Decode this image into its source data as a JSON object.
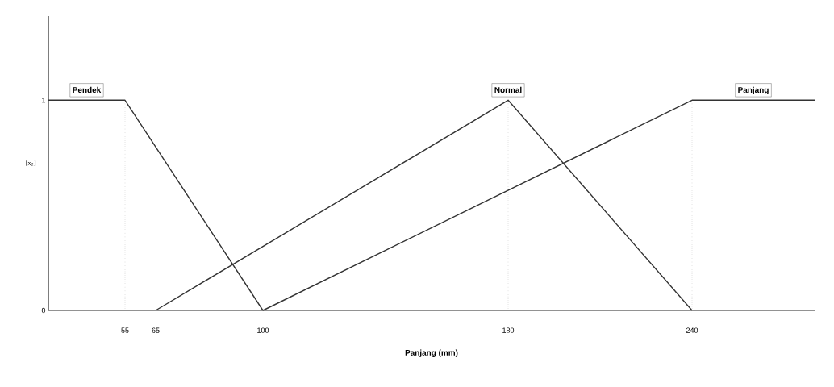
{
  "chart_data": {
    "type": "line",
    "xlabel": "Panjang (mm)",
    "ylabel": "[x$_{2}$]",
    "xlim": [
      30,
      280
    ],
    "ylim": [
      0,
      1.4
    ],
    "xticks": [
      55,
      65,
      100,
      180,
      240
    ],
    "yticks": [
      0,
      1
    ],
    "series": [
      {
        "name": "Pendek",
        "color": "#333333",
        "x": [
          30,
          55,
          100
        ],
        "values": [
          1,
          1,
          0
        ]
      },
      {
        "name": "Normal",
        "color": "#333333",
        "x": [
          65,
          180,
          240
        ],
        "values": [
          0,
          1,
          0
        ]
      },
      {
        "name": "Panjang",
        "color": "#333333",
        "x": [
          100,
          240,
          280
        ],
        "values": [
          0,
          1,
          1
        ]
      }
    ],
    "ref_lines": [
      {
        "axis": "x",
        "value": 55,
        "line_style": "dotted"
      },
      {
        "axis": "x",
        "value": 180,
        "line_style": "dotted"
      },
      {
        "axis": "x",
        "value": 240,
        "line_style": "dotted"
      }
    ],
    "grid": false,
    "marker": "none",
    "line_style": "solid"
  }
}
